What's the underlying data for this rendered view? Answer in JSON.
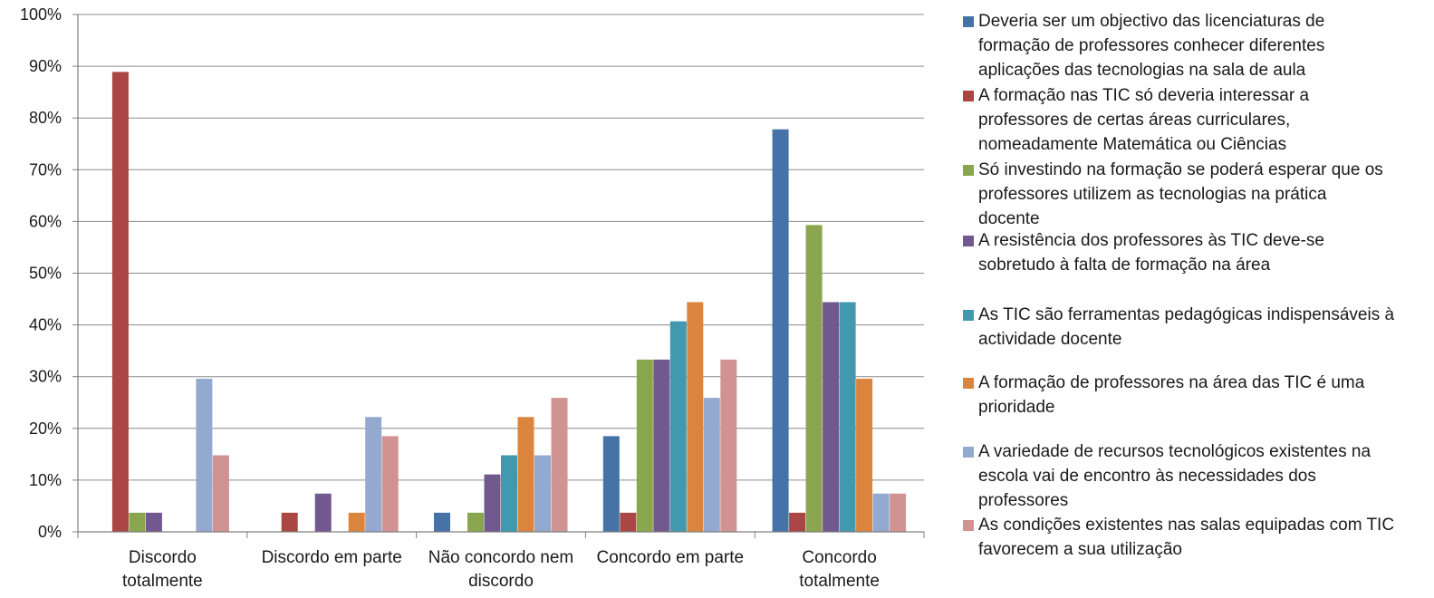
{
  "chart_data": {
    "type": "bar",
    "categories": [
      [
        "Discordo",
        "totalmente"
      ],
      [
        "Discordo em parte"
      ],
      [
        "Não concordo nem",
        "discordo"
      ],
      [
        "Concordo em parte"
      ],
      [
        "Concordo",
        "totalmente"
      ]
    ],
    "ylim": [
      0,
      100
    ],
    "yticks": [
      "0%",
      "10%",
      "20%",
      "30%",
      "40%",
      "50%",
      "60%",
      "70%",
      "80%",
      "90%",
      "100%"
    ],
    "grid": true,
    "legend_position": "right",
    "series": [
      {
        "name": "Deveria ser um objectivo das licenciaturas de formação de professores conhecer diferentes aplicações das tecnologias na sala de aula",
        "color": "#4572A7",
        "values": [
          0,
          0,
          3.7,
          18.5,
          77.8
        ]
      },
      {
        "name": "A formação nas TIC só deveria interessar a professores de certas áreas curriculares, nomeadamente Matemática ou Ciências",
        "color": "#AA4643",
        "values": [
          88.9,
          3.7,
          0,
          3.7,
          3.7
        ]
      },
      {
        "name": "Só investindo na formação se poderá esperar que os professores utilizem as tecnologias na prática docente",
        "color": "#89A54E",
        "values": [
          3.7,
          0,
          3.7,
          33.3,
          59.3
        ]
      },
      {
        "name": "A resistência dos professores às TIC deve-se sobretudo à falta de formação na área",
        "color": "#71588F",
        "values": [
          3.7,
          7.4,
          11.1,
          33.3,
          44.4
        ]
      },
      {
        "name": "As TIC são ferramentas pedagógicas indispensáveis à actividade docente",
        "color": "#4198AF",
        "values": [
          0,
          0,
          14.8,
          40.7,
          44.4
        ]
      },
      {
        "name": "A formação de professores na área das TIC é uma prioridade",
        "color": "#DB843D",
        "values": [
          0,
          3.7,
          22.2,
          44.4,
          29.6
        ]
      },
      {
        "name": "A variedade de recursos tecnológicos existentes na escola vai de encontro às necessidades dos professores",
        "color": "#93A9CF",
        "values": [
          29.6,
          22.2,
          14.8,
          25.9,
          7.4
        ]
      },
      {
        "name": "As condições existentes nas salas equipadas com TIC favorecem a sua utilização",
        "color": "#D19392",
        "values": [
          14.8,
          18.5,
          25.9,
          33.3,
          7.4
        ]
      }
    ]
  },
  "legend": {
    "items": [
      {
        "lines": [
          "Deveria ser um objectivo das licenciaturas de",
          "formação de professores conhecer diferentes",
          "aplicações das tecnologias na sala de aula"
        ]
      },
      {
        "lines": [
          "A formação nas TIC só deveria interessar a",
          "professores de certas áreas curriculares,",
          "nomeadamente Matemática ou Ciências"
        ]
      },
      {
        "lines": [
          "Só investindo na formação se poderá esperar que os",
          "professores utilizem as tecnologias na prática",
          "docente"
        ]
      },
      {
        "lines": [
          "A resistência dos professores às TIC deve-se",
          "sobretudo à falta de formação na área"
        ]
      },
      {
        "lines": [
          "As TIC são ferramentas pedagógicas indispensáveis à",
          "actividade docente"
        ]
      },
      {
        "lines": [
          "A formação de professores na área das TIC é uma",
          "prioridade"
        ]
      },
      {
        "lines": [
          "A variedade de recursos tecnológicos existentes na",
          "escola vai de encontro às necessidades dos",
          "professores"
        ]
      },
      {
        "lines": [
          "As condições existentes nas salas equipadas com TIC",
          "favorecem a sua utilização"
        ]
      }
    ]
  }
}
